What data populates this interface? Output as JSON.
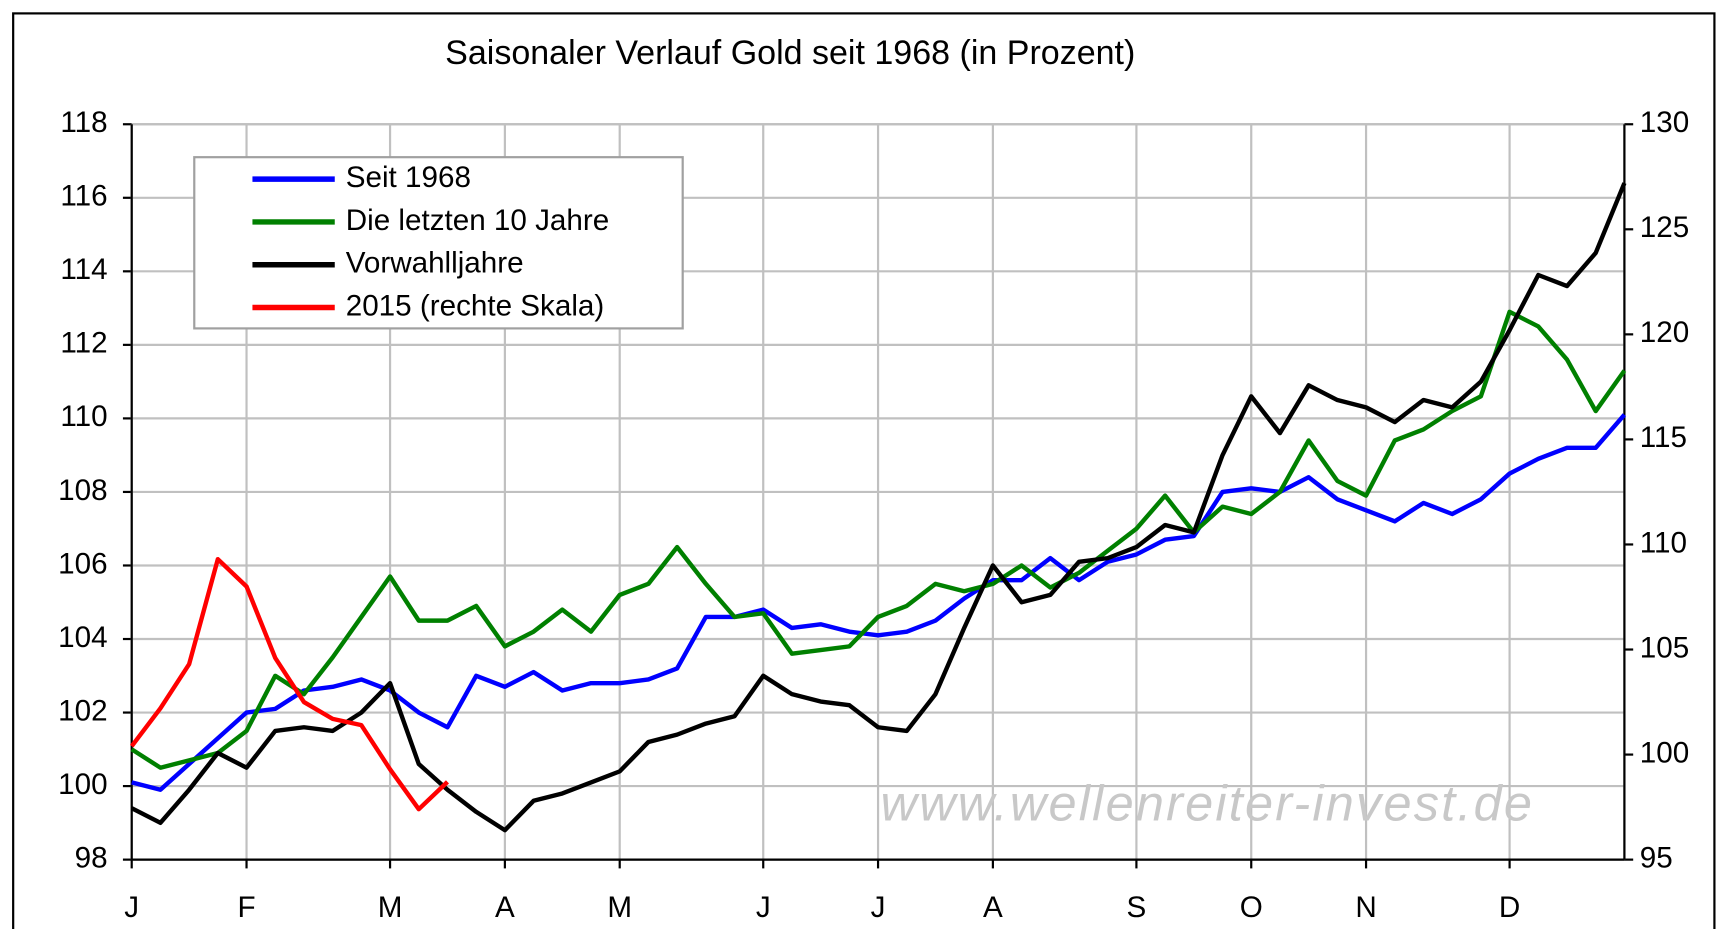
{
  "chart_data": {
    "type": "line",
    "title": "Saisonaler Verlauf Gold seit 1968 (in Prozent)",
    "annotation": "www.wellenreiter-invest.de",
    "categories": [
      "J",
      null,
      null,
      null,
      "F",
      null,
      null,
      null,
      null,
      "M",
      null,
      null,
      null,
      "A",
      null,
      null,
      null,
      "M",
      null,
      null,
      null,
      null,
      "J",
      null,
      null,
      null,
      "J",
      null,
      null,
      null,
      "A",
      null,
      null,
      null,
      null,
      "S",
      null,
      null,
      null,
      "O",
      null,
      null,
      null,
      "N",
      null,
      null,
      null,
      null,
      "D",
      null,
      null,
      null,
      null
    ],
    "series": [
      {
        "name": "Seit 1968",
        "color": "#0000ff",
        "values": [
          100.1,
          99.9,
          100.6,
          101.3,
          102.0,
          102.1,
          102.6,
          102.7,
          102.9,
          102.6,
          102.0,
          101.6,
          103.0,
          102.7,
          103.1,
          102.6,
          102.8,
          102.8,
          102.9,
          103.2,
          104.6,
          104.6,
          104.8,
          104.3,
          104.4,
          104.2,
          104.1,
          104.2,
          104.5,
          105.1,
          105.6,
          105.6,
          106.2,
          105.6,
          106.1,
          106.3,
          106.7,
          106.8,
          108.0,
          108.1,
          108.0,
          108.4,
          107.8,
          107.5,
          107.2,
          107.7,
          107.4,
          107.8,
          108.5,
          108.9,
          109.2,
          109.2,
          110.1
        ]
      },
      {
        "name": "Die letzten 10 Jahre",
        "color": "#008000",
        "values": [
          101.0,
          100.5,
          100.7,
          100.9,
          101.5,
          103.0,
          102.5,
          103.5,
          104.6,
          105.7,
          104.5,
          104.5,
          104.9,
          103.8,
          104.2,
          104.8,
          104.2,
          105.2,
          105.5,
          106.5,
          105.5,
          104.6,
          104.7,
          103.6,
          103.7,
          103.8,
          104.6,
          104.9,
          105.5,
          105.3,
          105.5,
          106.0,
          105.4,
          105.8,
          106.4,
          107.0,
          107.9,
          106.9,
          107.6,
          107.4,
          108.0,
          109.4,
          108.3,
          107.9,
          109.4,
          109.7,
          110.2,
          110.6,
          112.9,
          112.5,
          111.6,
          110.2,
          111.3
        ]
      },
      {
        "name": "Vorwahlljahre",
        "color": "#000000",
        "values": [
          99.4,
          99.0,
          99.9,
          100.9,
          100.5,
          101.5,
          101.6,
          101.5,
          102.0,
          102.8,
          100.6,
          99.9,
          99.3,
          98.8,
          99.6,
          99.8,
          100.1,
          100.4,
          101.2,
          101.4,
          101.7,
          101.9,
          103.0,
          102.5,
          102.3,
          102.2,
          101.6,
          101.5,
          102.5,
          104.3,
          106.0,
          105.0,
          105.2,
          106.1,
          106.2,
          106.5,
          107.1,
          106.9,
          109.0,
          110.6,
          109.6,
          110.9,
          110.5,
          110.3,
          109.9,
          110.5,
          110.3,
          111.0,
          112.4,
          113.9,
          113.6,
          114.5,
          116.4
        ]
      },
      {
        "name": "2015 (rechte Skala)",
        "color": "#ff0000",
        "axis": "y2",
        "values": [
          100.4,
          102.2,
          104.3,
          109.3,
          108.0,
          104.6,
          102.5,
          101.7,
          101.4,
          99.3,
          97.4,
          98.7,
          null,
          null,
          null,
          null,
          null,
          null,
          null,
          null,
          null,
          null,
          null,
          null,
          null,
          null,
          null,
          null,
          null,
          null,
          null,
          null,
          null,
          null,
          null,
          null,
          null,
          null,
          null,
          null,
          null,
          null,
          null,
          null,
          null,
          null,
          null,
          null,
          null,
          null,
          null,
          null,
          null
        ]
      }
    ],
    "ylim": [
      98,
      118
    ],
    "yticks": [
      98,
      100,
      102,
      104,
      106,
      108,
      110,
      112,
      114,
      116,
      118
    ],
    "y2lim": [
      95,
      130
    ],
    "y2ticks": [
      95,
      100,
      105,
      110,
      115,
      120,
      125,
      130
    ],
    "grid": true
  }
}
